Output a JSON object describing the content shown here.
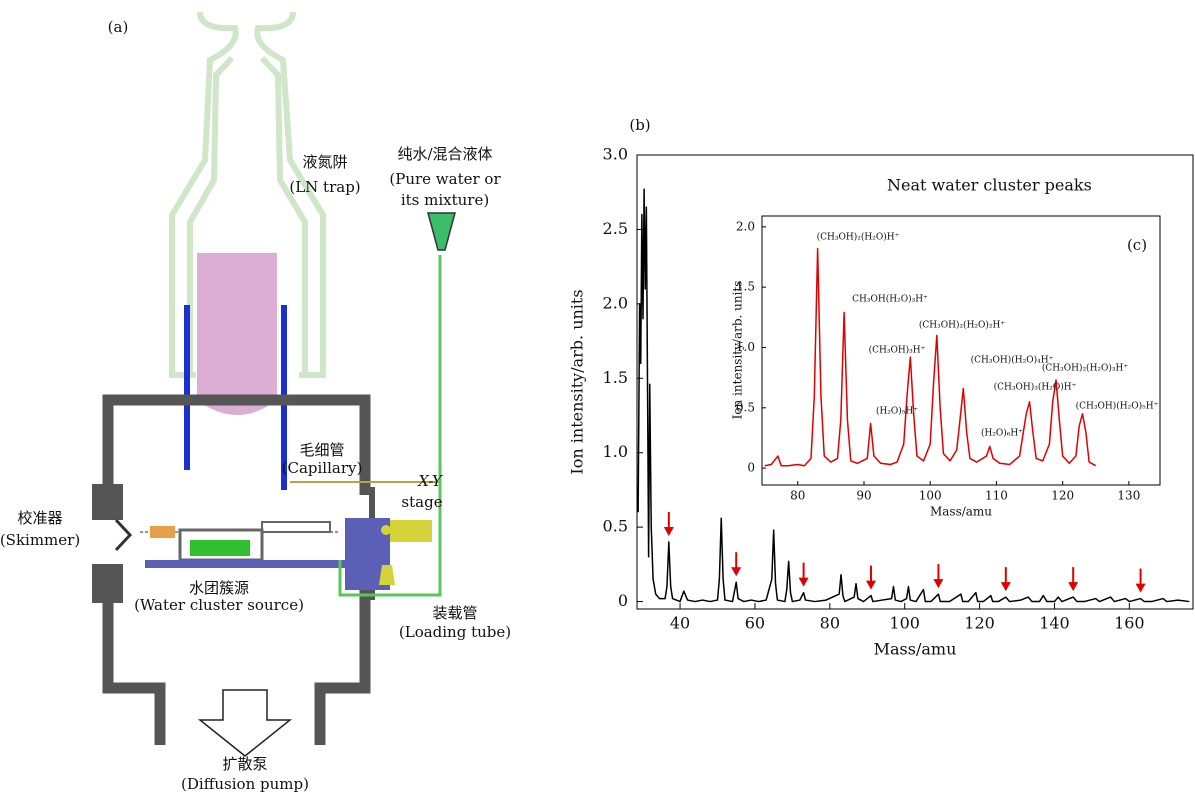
{
  "panel_a": {
    "label": "(a)",
    "labels": [
      "液氮阱",
      "(LN trap)",
      "纯水/混合液体",
      "(Pure water or",
      "its mixture)",
      "毛细管",
      "(Capillary)",
      "X-Y",
      "stage",
      "校准器",
      "(Skimmer)",
      "水团簇源",
      "(Water cluster source)",
      "装载管",
      "(Loading tube)",
      "扩散泵",
      "(Diffusion pump)"
    ]
  },
  "chart_data": [
    {
      "type": "line",
      "panel_label": "(b)",
      "x_label": "Mass/amu",
      "y_label": "Ion intensity/arb. units",
      "xlim": [
        28.5,
        177
      ],
      "xticks": [
        40,
        60,
        80,
        100,
        120,
        140,
        160
      ],
      "ylim": [
        -0.05,
        3.0
      ],
      "yticks": [
        0,
        0.5,
        {
          "value": 1,
          "label": "1.0"
        },
        1.5,
        {
          "value": 2,
          "label": "2.0"
        },
        2.5,
        {
          "value": 3,
          "label": "3.0"
        }
      ],
      "x": [
        28.8,
        29.2,
        29.5,
        29.8,
        30.1,
        30.4,
        30.7,
        31.0,
        31.3,
        31.6,
        31.9,
        32.3,
        32.8,
        33.5,
        34.5,
        36,
        36.5,
        37,
        37.5,
        38,
        40,
        41,
        42,
        44,
        46,
        48,
        50,
        50.5,
        51,
        51.5,
        52,
        54,
        55,
        55.5,
        57,
        59,
        61,
        63,
        64.5,
        65,
        65.5,
        66,
        68,
        68.5,
        69,
        69.5,
        70,
        72,
        73,
        73.5,
        76,
        79,
        82.5,
        83,
        83.5,
        84,
        86.5,
        87,
        87.5,
        89,
        91,
        91.5,
        94,
        96.5,
        97,
        97.5,
        99,
        100.5,
        101,
        101.5,
        103,
        105,
        105.5,
        107,
        109,
        109.5,
        112,
        115,
        115.5,
        117,
        119,
        119.5,
        121,
        123,
        123.5,
        125,
        127,
        128,
        131,
        133,
        134,
        136,
        137,
        138,
        140,
        141,
        142,
        145,
        146,
        148,
        151,
        152,
        155,
        156,
        159,
        160,
        163,
        164,
        166,
        169,
        170,
        173,
        176
      ],
      "series": [
        {
          "color": "#000000",
          "values": [
            0.6,
            2.0,
            1.6,
            2.6,
            1.9,
            2.77,
            2.1,
            2.65,
            1.5,
            0.3,
            1.46,
            0.5,
            0.15,
            0.05,
            0.02,
            0.02,
            0.1,
            0.4,
            0.1,
            0.02,
            0.0,
            0.07,
            0.01,
            0.0,
            0.01,
            0.0,
            0.01,
            0.15,
            0.56,
            0.15,
            0.01,
            0.0,
            0.13,
            0.02,
            0.0,
            0.01,
            0.0,
            0.01,
            0.15,
            0.48,
            0.12,
            0.01,
            0.0,
            0.08,
            0.27,
            0.06,
            0.0,
            0.01,
            0.06,
            0.01,
            0.0,
            0.01,
            0.05,
            0.18,
            0.04,
            0.0,
            0.03,
            0.12,
            0.02,
            0.0,
            0.04,
            0.0,
            0.01,
            0.02,
            0.1,
            0.01,
            0.0,
            0.02,
            0.1,
            0.01,
            0.0,
            0.08,
            0.0,
            0.0,
            0.05,
            0.0,
            0.0,
            0.05,
            0.0,
            0.0,
            0.06,
            0.0,
            0.0,
            0.04,
            0.0,
            0.0,
            0.03,
            0.0,
            0.01,
            0.03,
            0.0,
            0.0,
            0.04,
            0.0,
            0.0,
            0.03,
            0.0,
            0.03,
            0.0,
            0.0,
            0.02,
            0.0,
            0.03,
            0.0,
            0.02,
            0.0,
            0.02,
            0.0,
            0.0,
            0.02,
            0.0,
            0.01,
            0.0
          ]
        }
      ],
      "marked_peaks": [
        37,
        55,
        73,
        91,
        109,
        127,
        145,
        163
      ],
      "marker_color": "#e00000",
      "annotation": "Neat water cluster peaks"
    },
    {
      "type": "line",
      "panel_label": "(c)",
      "x_label": "Mass/amu",
      "y_label": "Ion intensity/arb. units",
      "xlim": [
        74.6,
        134.7
      ],
      "xticks": [
        80,
        90,
        100,
        110,
        120,
        130
      ],
      "ylim": [
        -0.14,
        2.09
      ],
      "yticks": [
        0,
        0.5,
        {
          "value": 1,
          "label": "1.0"
        },
        1.5,
        {
          "value": 2,
          "label": "2.0"
        }
      ],
      "x": [
        75,
        76,
        77,
        77.5,
        78.5,
        80,
        81,
        82,
        82.5,
        83,
        83.5,
        84,
        85,
        86,
        86.5,
        87,
        87.5,
        88,
        89,
        90.5,
        91,
        91.5,
        92.5,
        94,
        95,
        96,
        96.5,
        97,
        97.5,
        98,
        99,
        100,
        100.5,
        101,
        101.5,
        102,
        103,
        104,
        104.5,
        105,
        105.5,
        106,
        107,
        108.5,
        109,
        109.5,
        110.5,
        112,
        113.5,
        114.5,
        115,
        115.5,
        116,
        117,
        118,
        118.5,
        119,
        119.5,
        120,
        121,
        122,
        122.5,
        123,
        123.5,
        124,
        125
      ],
      "series": [
        {
          "color": "#e00000",
          "values": [
            0.02,
            0.03,
            0.1,
            0.02,
            0.02,
            0.03,
            0.02,
            0.08,
            0.6,
            1.82,
            0.6,
            0.1,
            0.05,
            0.08,
            0.4,
            1.29,
            0.4,
            0.06,
            0.04,
            0.08,
            0.37,
            0.1,
            0.04,
            0.03,
            0.05,
            0.2,
            0.6,
            0.92,
            0.45,
            0.1,
            0.06,
            0.2,
            0.7,
            1.1,
            0.5,
            0.12,
            0.06,
            0.15,
            0.4,
            0.66,
            0.3,
            0.08,
            0.05,
            0.1,
            0.18,
            0.08,
            0.04,
            0.03,
            0.1,
            0.45,
            0.55,
            0.3,
            0.08,
            0.06,
            0.2,
            0.55,
            0.73,
            0.4,
            0.1,
            0.04,
            0.1,
            0.35,
            0.45,
            0.3,
            0.05,
            0.02
          ]
        }
      ],
      "peak_labels": [
        "(CH₃OH)₂(H₂O)H⁺",
        "CH₃OH(H₂O)₃H⁺",
        "(CH₃OH)₂(H₂O)₂H⁺",
        "(CH₃OH)₃H⁺",
        "(CH₃OH)(H₂O)₄H⁺",
        "(CH₃OH)₂(H₂O)₃H⁺",
        "(CH₃OH)₃(H₂O)H⁺",
        "(H₂O)₅H⁺",
        "(CH₃OH)(H₂O)₅H⁺",
        "(H₂O)₆H⁺"
      ]
    }
  ]
}
